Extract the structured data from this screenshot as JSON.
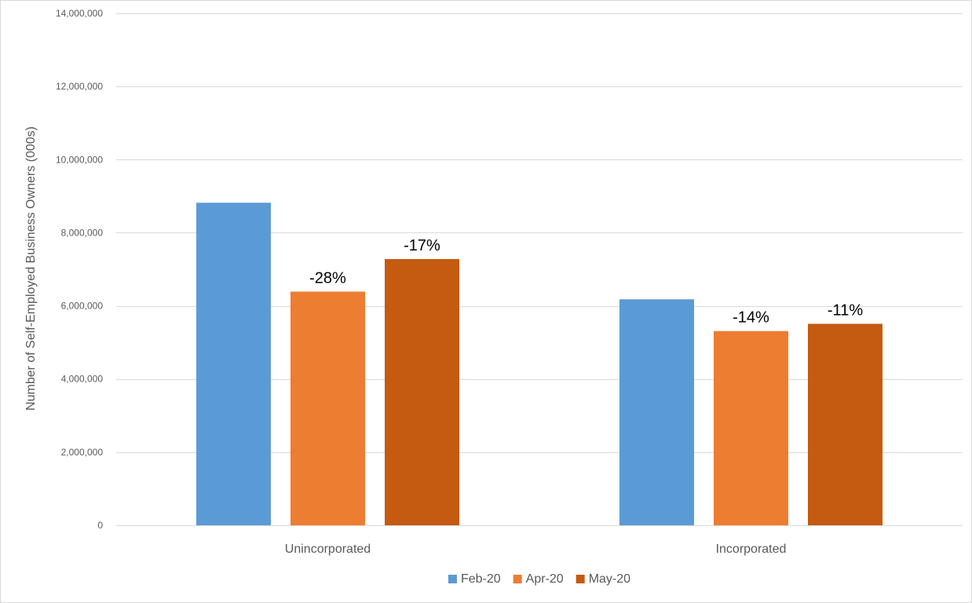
{
  "chart_data": {
    "type": "bar",
    "title": "",
    "xlabel": "",
    "ylabel": "Number of Self-Employed Business Owners (000s)",
    "ylim": [
      0,
      14000000
    ],
    "yticks": [
      0,
      2000000,
      4000000,
      6000000,
      8000000,
      10000000,
      12000000,
      14000000
    ],
    "ytick_labels": [
      "0",
      "2,000,000",
      "4,000,000",
      "6,000,000",
      "8,000,000",
      "10,000,000",
      "12,000,000",
      "14,000,000"
    ],
    "categories": [
      "Unincorporated",
      "Incorporated"
    ],
    "series": [
      {
        "name": "Feb-20",
        "color": "#5b9bd5",
        "values": [
          8820000,
          6180000
        ],
        "labels": [
          "",
          ""
        ]
      },
      {
        "name": "Apr-20",
        "color": "#ed7d31",
        "values": [
          6390000,
          5310000
        ],
        "labels": [
          "-28%",
          "-14%"
        ]
      },
      {
        "name": "May-20",
        "color": "#c55a11",
        "values": [
          7280000,
          5510000
        ],
        "labels": [
          "-17%",
          "-11%"
        ]
      }
    ],
    "grid": true,
    "legend_position": "bottom"
  }
}
